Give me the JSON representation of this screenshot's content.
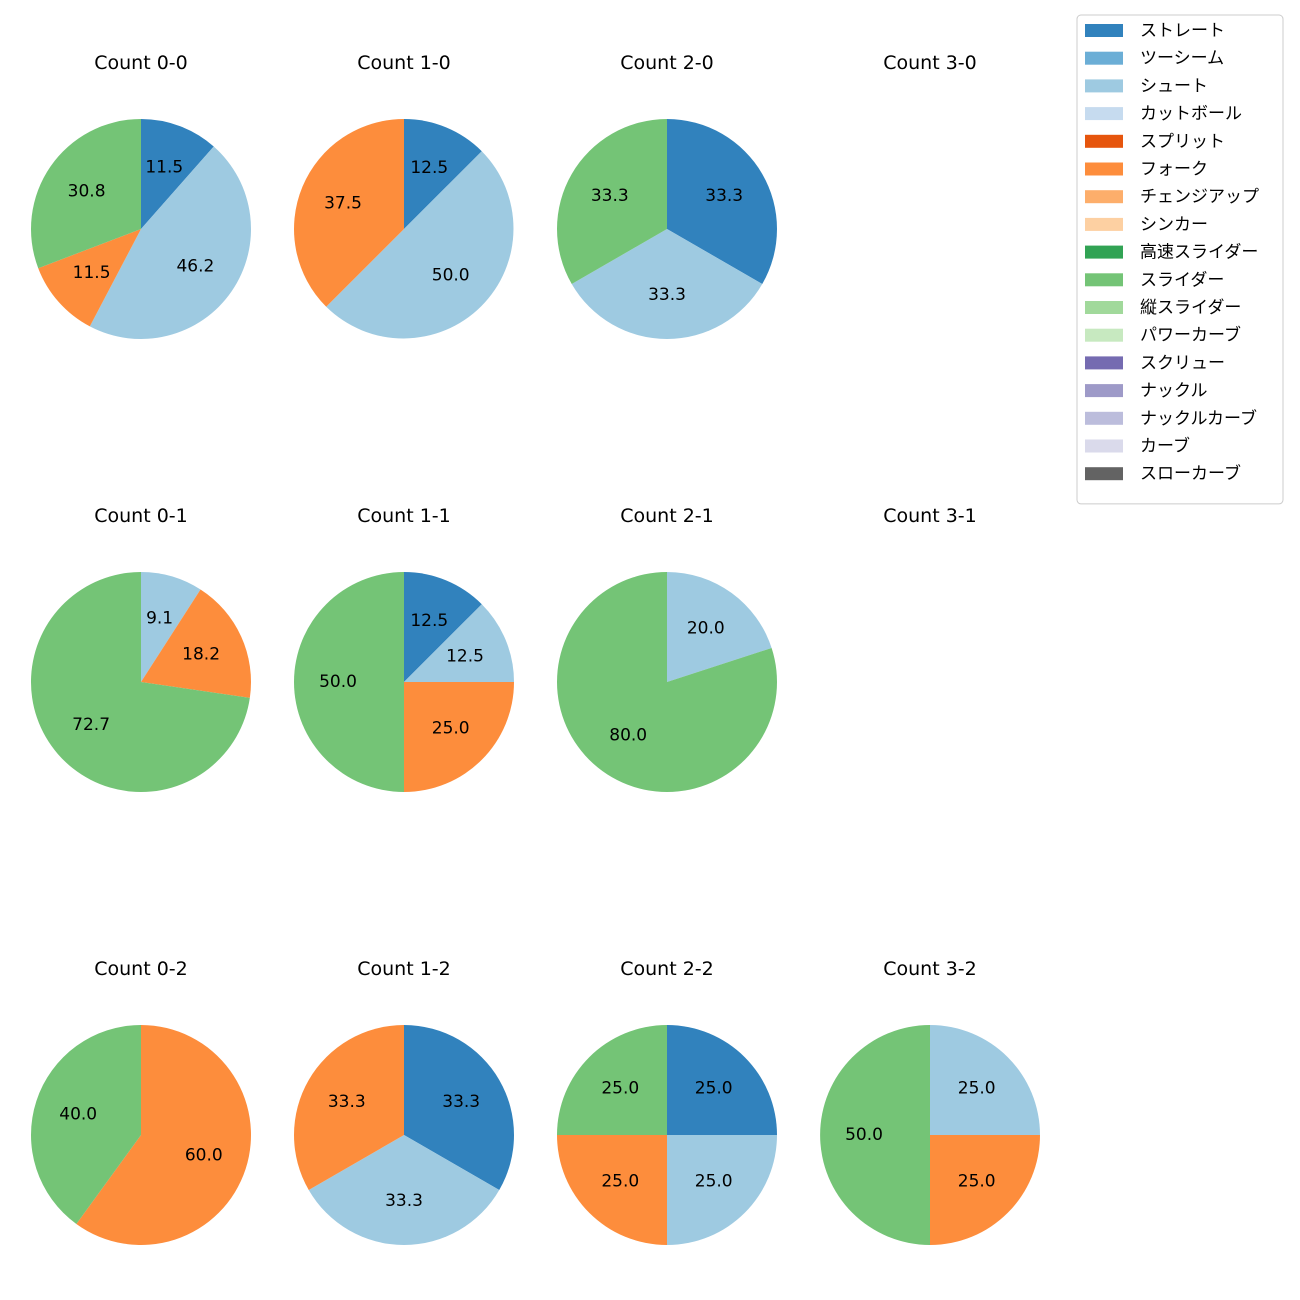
{
  "legend": {
    "placement": "top-right",
    "entries": [
      {
        "name": "ストレート",
        "color": "#3182bd"
      },
      {
        "name": "ツーシーム",
        "color": "#6baed6"
      },
      {
        "name": "シュート",
        "color": "#9ecae1"
      },
      {
        "name": "カットボール",
        "color": "#c6dbef"
      },
      {
        "name": "スプリット",
        "color": "#e6550d"
      },
      {
        "name": "フォーク",
        "color": "#fd8d3c"
      },
      {
        "name": "チェンジアップ",
        "color": "#fdae6b"
      },
      {
        "name": "シンカー",
        "color": "#fdd0a2"
      },
      {
        "name": "高速スライダー",
        "color": "#31a354"
      },
      {
        "name": "スライダー",
        "color": "#74c476"
      },
      {
        "name": "縦スライダー",
        "color": "#a1d99b"
      },
      {
        "name": "パワーカーブ",
        "color": "#c7e9c0"
      },
      {
        "name": "スクリュー",
        "color": "#756bb1"
      },
      {
        "name": "ナックル",
        "color": "#9e9ac8"
      },
      {
        "name": "ナックルカーブ",
        "color": "#bcbddc"
      },
      {
        "name": "カーブ",
        "color": "#dadaeb"
      },
      {
        "name": "スローカーブ",
        "color": "#636363"
      }
    ]
  },
  "chart_data": [
    {
      "type": "pie",
      "title": "Count 0-0",
      "slices": [
        {
          "label": "ストレート",
          "value": 11.5
        },
        {
          "label": "シュート",
          "value": 46.2
        },
        {
          "label": "フォーク",
          "value": 11.5
        },
        {
          "label": "スライダー",
          "value": 30.8
        }
      ]
    },
    {
      "type": "pie",
      "title": "Count 1-0",
      "slices": [
        {
          "label": "ストレート",
          "value": 12.5
        },
        {
          "label": "シュート",
          "value": 50.0
        },
        {
          "label": "フォーク",
          "value": 37.5
        }
      ]
    },
    {
      "type": "pie",
      "title": "Count 2-0",
      "slices": [
        {
          "label": "ストレート",
          "value": 33.3
        },
        {
          "label": "シュート",
          "value": 33.3
        },
        {
          "label": "スライダー",
          "value": 33.3
        }
      ]
    },
    {
      "type": "pie",
      "title": "Count 3-0",
      "slices": []
    },
    {
      "type": "pie",
      "title": "Count 0-1",
      "slices": [
        {
          "label": "シュート",
          "value": 9.1
        },
        {
          "label": "フォーク",
          "value": 18.2
        },
        {
          "label": "スライダー",
          "value": 72.7
        }
      ]
    },
    {
      "type": "pie",
      "title": "Count 1-1",
      "slices": [
        {
          "label": "ストレート",
          "value": 12.5
        },
        {
          "label": "シュート",
          "value": 12.5
        },
        {
          "label": "フォーク",
          "value": 25.0
        },
        {
          "label": "スライダー",
          "value": 50.0
        }
      ]
    },
    {
      "type": "pie",
      "title": "Count 2-1",
      "slices": [
        {
          "label": "シュート",
          "value": 20.0
        },
        {
          "label": "スライダー",
          "value": 80.0
        }
      ]
    },
    {
      "type": "pie",
      "title": "Count 3-1",
      "slices": []
    },
    {
      "type": "pie",
      "title": "Count 0-2",
      "slices": [
        {
          "label": "フォーク",
          "value": 60.0
        },
        {
          "label": "スライダー",
          "value": 40.0
        }
      ]
    },
    {
      "type": "pie",
      "title": "Count 1-2",
      "slices": [
        {
          "label": "ストレート",
          "value": 33.3
        },
        {
          "label": "シュート",
          "value": 33.3
        },
        {
          "label": "フォーク",
          "value": 33.3
        }
      ]
    },
    {
      "type": "pie",
      "title": "Count 2-2",
      "slices": [
        {
          "label": "ストレート",
          "value": 25.0
        },
        {
          "label": "シュート",
          "value": 25.0
        },
        {
          "label": "フォーク",
          "value": 25.0
        },
        {
          "label": "スライダー",
          "value": 25.0
        }
      ]
    },
    {
      "type": "pie",
      "title": "Count 3-2",
      "slices": [
        {
          "label": "シュート",
          "value": 25.0
        },
        {
          "label": "フォーク",
          "value": 25.0
        },
        {
          "label": "スライダー",
          "value": 50.0
        }
      ]
    }
  ]
}
